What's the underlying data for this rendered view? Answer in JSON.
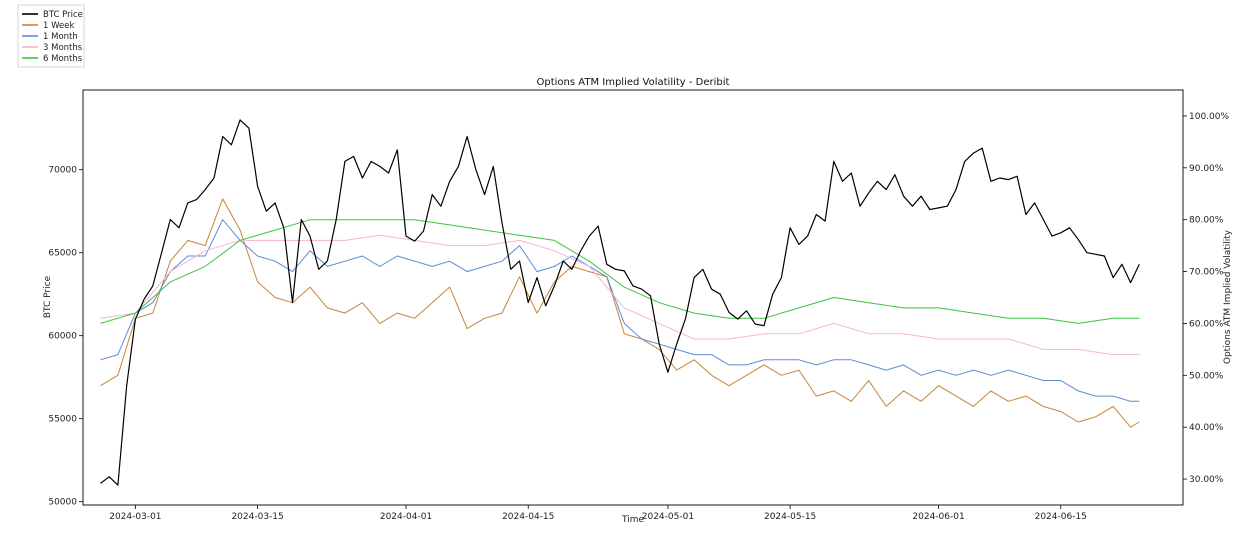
{
  "chart_data": {
    "type": "line",
    "title": "Options ATM Implied Volatility - Deribit",
    "xlabel": "Time",
    "ylabel_left": "BTC Price",
    "ylabel_right": "Options ATM Implied Volatility",
    "x_range": [
      "2024-02-24",
      "2024-06-29"
    ],
    "ylim_left": [
      49800,
      74800
    ],
    "ylim_right": [
      25.0,
      105.0
    ],
    "x_ticks": [
      "2024-03-01",
      "2024-03-15",
      "2024-04-01",
      "2024-04-15",
      "2024-05-01",
      "2024-05-15",
      "2024-06-01",
      "2024-06-15"
    ],
    "y_ticks_left": [
      "50000",
      "55000",
      "60000",
      "65000",
      "70000"
    ],
    "y_ticks_right": [
      "30.00%",
      "40.00%",
      "50.00%",
      "60.00%",
      "70.00%",
      "80.00%",
      "90.00%",
      "100.00%"
    ],
    "grid": false,
    "legend_position": "top-left, outside plot",
    "series": [
      {
        "name": "BTC Price",
        "axis": "left",
        "color": "#000000",
        "x": [
          "2024-02-26",
          "2024-02-27",
          "2024-02-28",
          "2024-02-29",
          "2024-03-01",
          "2024-03-02",
          "2024-03-03",
          "2024-03-04",
          "2024-03-05",
          "2024-03-06",
          "2024-03-07",
          "2024-03-08",
          "2024-03-09",
          "2024-03-10",
          "2024-03-11",
          "2024-03-12",
          "2024-03-13",
          "2024-03-14",
          "2024-03-15",
          "2024-03-16",
          "2024-03-17",
          "2024-03-18",
          "2024-03-19",
          "2024-03-20",
          "2024-03-21",
          "2024-03-22",
          "2024-03-23",
          "2024-03-24",
          "2024-03-25",
          "2024-03-26",
          "2024-03-27",
          "2024-03-28",
          "2024-03-29",
          "2024-03-30",
          "2024-03-31",
          "2024-04-01",
          "2024-04-02",
          "2024-04-03",
          "2024-04-04",
          "2024-04-05",
          "2024-04-06",
          "2024-04-07",
          "2024-04-08",
          "2024-04-09",
          "2024-04-10",
          "2024-04-11",
          "2024-04-12",
          "2024-04-13",
          "2024-04-14",
          "2024-04-15",
          "2024-04-16",
          "2024-04-17",
          "2024-04-18",
          "2024-04-19",
          "2024-04-20",
          "2024-04-21",
          "2024-04-22",
          "2024-04-23",
          "2024-04-24",
          "2024-04-25",
          "2024-04-26",
          "2024-04-27",
          "2024-04-28",
          "2024-04-29",
          "2024-04-30",
          "2024-05-01",
          "2024-05-02",
          "2024-05-03",
          "2024-05-04",
          "2024-05-05",
          "2024-05-06",
          "2024-05-07",
          "2024-05-08",
          "2024-05-09",
          "2024-05-10",
          "2024-05-11",
          "2024-05-12",
          "2024-05-13",
          "2024-05-14",
          "2024-05-15",
          "2024-05-16",
          "2024-05-17",
          "2024-05-18",
          "2024-05-19",
          "2024-05-20",
          "2024-05-21",
          "2024-05-22",
          "2024-05-23",
          "2024-05-24",
          "2024-05-25",
          "2024-05-26",
          "2024-05-27",
          "2024-05-28",
          "2024-05-29",
          "2024-05-30",
          "2024-05-31",
          "2024-06-01",
          "2024-06-02",
          "2024-06-03",
          "2024-06-04",
          "2024-06-05",
          "2024-06-06",
          "2024-06-07",
          "2024-06-08",
          "2024-06-09",
          "2024-06-10",
          "2024-06-11",
          "2024-06-12",
          "2024-06-13",
          "2024-06-14",
          "2024-06-15",
          "2024-06-16",
          "2024-06-17",
          "2024-06-18",
          "2024-06-19",
          "2024-06-20",
          "2024-06-21",
          "2024-06-22",
          "2024-06-23",
          "2024-06-24"
        ],
        "values": [
          51100,
          51500,
          51000,
          57000,
          61000,
          62200,
          63000,
          65000,
          67000,
          66500,
          68000,
          68200,
          68800,
          69500,
          72000,
          71500,
          73000,
          72500,
          69000,
          67500,
          68000,
          66500,
          62000,
          67000,
          66000,
          64000,
          64500,
          67000,
          70500,
          70800,
          69500,
          70500,
          70200,
          69800,
          71200,
          66000,
          65700,
          66300,
          68500,
          67800,
          69300,
          70200,
          72000,
          70000,
          68500,
          70200,
          66800,
          64000,
          64500,
          62000,
          63500,
          61800,
          63000,
          64500,
          64000,
          65100,
          66000,
          66600,
          64300,
          64000,
          63900,
          63000,
          62800,
          62400,
          59500,
          57800,
          59500,
          61000,
          63500,
          64000,
          62800,
          62500,
          61400,
          61000,
          61500,
          60700,
          60600,
          62500,
          63500,
          66500,
          65500,
          66000,
          67300,
          66900,
          70500,
          69300,
          69800,
          67800,
          68600,
          69300,
          68800,
          69700,
          68400,
          67800,
          68400,
          67600,
          67700,
          67800,
          68800,
          70500,
          71000,
          71300,
          69300,
          69500,
          69400,
          69600,
          67300,
          68000,
          67000,
          66000,
          66200,
          66500,
          65800,
          65000,
          64900,
          64800,
          63500,
          64300,
          63200,
          64300
        ]
      },
      {
        "name": "1 Week",
        "axis": "right",
        "color": "#c8843a",
        "x": [
          "2024-02-26",
          "2024-02-28",
          "2024-03-01",
          "2024-03-03",
          "2024-03-05",
          "2024-03-07",
          "2024-03-09",
          "2024-03-11",
          "2024-03-13",
          "2024-03-15",
          "2024-03-17",
          "2024-03-19",
          "2024-03-21",
          "2024-03-23",
          "2024-03-25",
          "2024-03-27",
          "2024-03-29",
          "2024-03-31",
          "2024-04-02",
          "2024-04-04",
          "2024-04-06",
          "2024-04-08",
          "2024-04-10",
          "2024-04-12",
          "2024-04-14",
          "2024-04-16",
          "2024-04-18",
          "2024-04-20",
          "2024-04-22",
          "2024-04-24",
          "2024-04-26",
          "2024-04-28",
          "2024-04-30",
          "2024-05-02",
          "2024-05-04",
          "2024-05-06",
          "2024-05-08",
          "2024-05-10",
          "2024-05-12",
          "2024-05-14",
          "2024-05-16",
          "2024-05-18",
          "2024-05-20",
          "2024-05-22",
          "2024-05-24",
          "2024-05-26",
          "2024-05-28",
          "2024-05-30",
          "2024-06-01",
          "2024-06-03",
          "2024-06-05",
          "2024-06-07",
          "2024-06-09",
          "2024-06-11",
          "2024-06-13",
          "2024-06-15",
          "2024-06-17",
          "2024-06-19",
          "2024-06-21",
          "2024-06-23",
          "2024-06-24"
        ],
        "values": [
          48,
          50,
          61,
          62,
          72,
          76,
          75,
          84,
          78,
          68,
          65,
          64,
          67,
          63,
          62,
          64,
          60,
          62,
          61,
          64,
          67,
          59,
          61,
          62,
          69,
          62,
          68,
          71,
          70,
          69,
          58,
          57,
          55,
          51,
          53,
          50,
          48,
          50,
          52,
          50,
          51,
          46,
          47,
          45,
          49,
          44,
          47,
          45,
          48,
          46,
          44,
          47,
          45,
          46,
          44,
          43,
          41,
          42,
          44,
          40,
          41
        ]
      },
      {
        "name": "1 Month",
        "axis": "right",
        "color": "#5b8bd4",
        "x": [
          "2024-02-26",
          "2024-02-28",
          "2024-03-01",
          "2024-03-03",
          "2024-03-05",
          "2024-03-07",
          "2024-03-09",
          "2024-03-11",
          "2024-03-13",
          "2024-03-15",
          "2024-03-17",
          "2024-03-19",
          "2024-03-21",
          "2024-03-23",
          "2024-03-25",
          "2024-03-27",
          "2024-03-29",
          "2024-03-31",
          "2024-04-02",
          "2024-04-04",
          "2024-04-06",
          "2024-04-08",
          "2024-04-10",
          "2024-04-12",
          "2024-04-14",
          "2024-04-16",
          "2024-04-18",
          "2024-04-20",
          "2024-04-22",
          "2024-04-24",
          "2024-04-26",
          "2024-04-28",
          "2024-04-30",
          "2024-05-02",
          "2024-05-04",
          "2024-05-06",
          "2024-05-08",
          "2024-05-10",
          "2024-05-12",
          "2024-05-14",
          "2024-05-16",
          "2024-05-18",
          "2024-05-20",
          "2024-05-22",
          "2024-05-24",
          "2024-05-26",
          "2024-05-28",
          "2024-05-30",
          "2024-06-01",
          "2024-06-03",
          "2024-06-05",
          "2024-06-07",
          "2024-06-09",
          "2024-06-11",
          "2024-06-13",
          "2024-06-15",
          "2024-06-17",
          "2024-06-19",
          "2024-06-21",
          "2024-06-23",
          "2024-06-24"
        ],
        "values": [
          53,
          54,
          62,
          64,
          70,
          73,
          73,
          80,
          76,
          73,
          72,
          70,
          74,
          71,
          72,
          73,
          71,
          73,
          72,
          71,
          72,
          70,
          71,
          72,
          75,
          70,
          71,
          73,
          71,
          69,
          60,
          57,
          56,
          55,
          54,
          54,
          52,
          52,
          53,
          53,
          53,
          52,
          53,
          53,
          52,
          51,
          52,
          50,
          51,
          50,
          51,
          50,
          51,
          50,
          49,
          49,
          47,
          46,
          46,
          45,
          45
        ]
      },
      {
        "name": "3 Months",
        "axis": "right",
        "color": "#f2b8c6",
        "x": [
          "2024-02-26",
          "2024-03-01",
          "2024-03-05",
          "2024-03-09",
          "2024-03-13",
          "2024-03-17",
          "2024-03-21",
          "2024-03-25",
          "2024-03-29",
          "2024-04-02",
          "2024-04-06",
          "2024-04-10",
          "2024-04-14",
          "2024-04-18",
          "2024-04-22",
          "2024-04-26",
          "2024-04-30",
          "2024-05-04",
          "2024-05-08",
          "2024-05-12",
          "2024-05-16",
          "2024-05-20",
          "2024-05-24",
          "2024-05-28",
          "2024-06-01",
          "2024-06-05",
          "2024-06-09",
          "2024-06-13",
          "2024-06-17",
          "2024-06-21",
          "2024-06-24"
        ],
        "values": [
          61,
          62,
          70,
          74,
          76,
          76,
          76,
          76,
          77,
          76,
          75,
          75,
          76,
          74,
          71,
          63,
          60,
          57,
          57,
          58,
          58,
          60,
          58,
          58,
          57,
          57,
          57,
          55,
          55,
          54,
          54
        ]
      },
      {
        "name": "6 Months",
        "axis": "right",
        "color": "#3ec43e",
        "x": [
          "2024-02-26",
          "2024-03-01",
          "2024-03-05",
          "2024-03-09",
          "2024-03-13",
          "2024-03-17",
          "2024-03-21",
          "2024-03-25",
          "2024-03-29",
          "2024-04-02",
          "2024-04-06",
          "2024-04-10",
          "2024-04-14",
          "2024-04-18",
          "2024-04-22",
          "2024-04-26",
          "2024-04-30",
          "2024-05-04",
          "2024-05-08",
          "2024-05-12",
          "2024-05-16",
          "2024-05-20",
          "2024-05-24",
          "2024-05-28",
          "2024-06-01",
          "2024-06-05",
          "2024-06-09",
          "2024-06-13",
          "2024-06-17",
          "2024-06-21",
          "2024-06-24"
        ],
        "values": [
          60,
          62,
          68,
          71,
          76,
          78,
          80,
          80,
          80,
          80,
          79,
          78,
          77,
          76,
          72,
          67,
          64,
          62,
          61,
          61,
          63,
          65,
          64,
          63,
          63,
          62,
          61,
          61,
          60,
          61,
          61
        ]
      }
    ]
  }
}
